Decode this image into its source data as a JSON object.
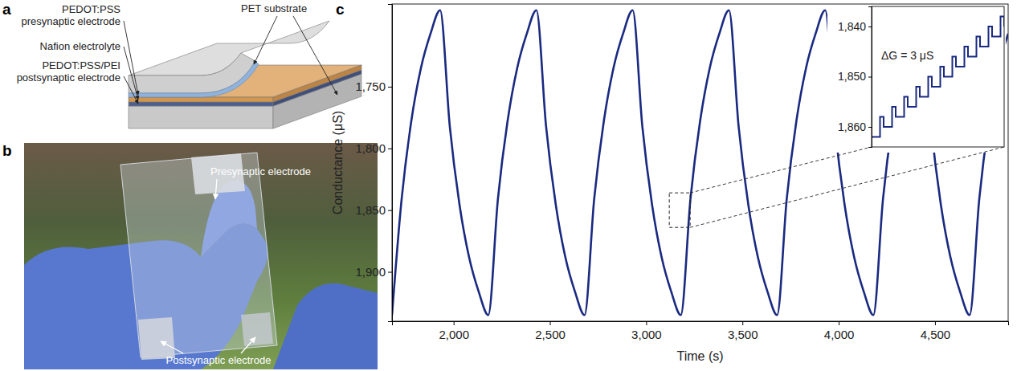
{
  "panel_letters": [
    "a",
    "b",
    "c"
  ],
  "schematic": {
    "layers": [
      "PEDOT:PSS presynaptic electrode",
      "Nafion electrolyte",
      "PEDOT:PSS/PEI postsynaptic electrode"
    ],
    "substrate": "PET substrate"
  },
  "photo": {
    "labels": [
      "Presynaptic electrode",
      "Postsynaptic electrode"
    ]
  },
  "chart_data": [
    {
      "type": "line",
      "x_label": "Time (s)",
      "y_label": "Conductance (μS)",
      "grid": false,
      "line_style": "solid",
      "color": "#1a2a80",
      "xlim": [
        1680,
        4880
      ],
      "xticks": [
        {
          "value": 2000,
          "label": "2,000"
        },
        {
          "value": 2500,
          "label": "2,500"
        },
        {
          "value": 3000,
          "label": "3,000"
        },
        {
          "value": 3500,
          "label": "3,500"
        },
        {
          "value": 4000,
          "label": "4,000"
        },
        {
          "value": 4500,
          "label": "4,500"
        }
      ],
      "ylim": [
        1940,
        1683
      ],
      "yticks": [
        {
          "value": 1750,
          "label": "1,750"
        },
        {
          "value": 1800,
          "label": "1,800"
        },
        {
          "value": 1850,
          "label": "1,850"
        },
        {
          "value": 1900,
          "label": "1,900"
        }
      ],
      "x": [
        1680,
        1730,
        1780,
        1830,
        1880,
        1930,
        1980,
        2030,
        2080,
        2130,
        2180,
        2230,
        2280,
        2330,
        2380,
        2430,
        2480,
        2530,
        2580,
        2630,
        2680,
        2730,
        2780,
        2830,
        2880,
        2930,
        2980,
        3030,
        3080,
        3130,
        3180,
        3230,
        3280,
        3330,
        3380,
        3430,
        3480,
        3530,
        3580,
        3630,
        3680,
        3730,
        3780,
        3830,
        3880,
        3930,
        3980,
        4030,
        4080,
        4130,
        4180,
        4230,
        4280,
        4330,
        4380,
        4430,
        4480,
        4530,
        4580,
        4630,
        4680,
        4730,
        4780,
        4830,
        4880
      ],
      "values": [
        1935,
        1841,
        1778,
        1735,
        1707,
        1688,
        1782,
        1845,
        1888,
        1916,
        1935,
        1841,
        1778,
        1735,
        1707,
        1688,
        1782,
        1845,
        1888,
        1916,
        1935,
        1841,
        1778,
        1735,
        1707,
        1688,
        1782,
        1845,
        1888,
        1916,
        1935,
        1841,
        1778,
        1735,
        1707,
        1688,
        1782,
        1845,
        1888,
        1916,
        1935,
        1841,
        1778,
        1735,
        1707,
        1688,
        1782,
        1845,
        1888,
        1916,
        1935,
        1841,
        1778,
        1735,
        1707,
        1688,
        1782,
        1845,
        1888,
        1916,
        1935,
        1841,
        1778,
        1735,
        1707
      ]
    },
    {
      "type": "line",
      "annotation": "ΔG = 3 μS",
      "tick_labels": "y",
      "line_style": "step",
      "color": "#1a2a80",
      "xlim": [
        0,
        22
      ],
      "ylim": [
        1864,
        1836
      ],
      "yticks": [
        {
          "value": 1840,
          "label": "1,840"
        },
        {
          "value": 1850,
          "label": "1,850"
        },
        {
          "value": 1860,
          "label": "1,860"
        }
      ],
      "x": [
        0,
        1.4,
        2,
        3.4,
        4,
        5.4,
        6,
        7.4,
        8,
        9.4,
        10,
        11.4,
        12,
        13.4,
        14,
        15.4,
        16,
        17.4,
        18,
        19.4,
        20,
        21.4,
        22
      ],
      "values": [
        1862,
        1858,
        1860,
        1856,
        1858,
        1854,
        1856,
        1852,
        1854,
        1850,
        1852,
        1848,
        1850,
        1846,
        1848,
        1844,
        1846,
        1842,
        1844,
        1840,
        1842,
        1838,
        1840
      ]
    }
  ]
}
